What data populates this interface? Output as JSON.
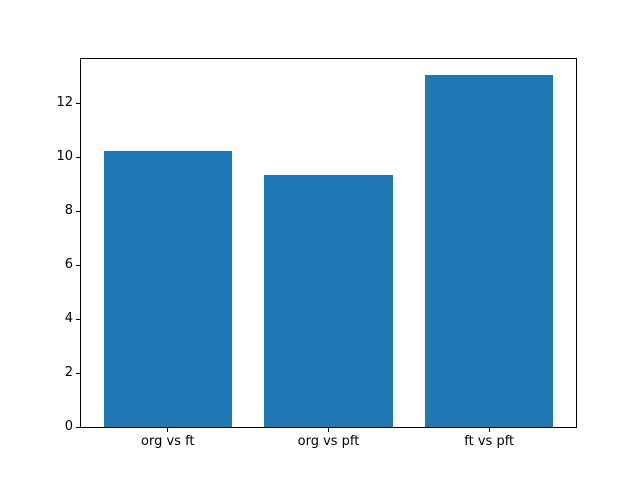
{
  "chart_data": {
    "type": "bar",
    "title": "",
    "xlabel": "",
    "ylabel": "",
    "categories": [
      "org vs ft",
      "org vs pft",
      "ft vs pft"
    ],
    "values": [
      10.25,
      9.33,
      13.05
    ],
    "bar_color": "#1f77b4",
    "bar_width": 0.8,
    "xlim": [
      -0.54,
      2.54
    ],
    "ylim": [
      0,
      13.65
    ],
    "yticks": [
      0,
      2,
      4,
      6,
      8,
      10,
      12
    ],
    "grid": false,
    "legend": "none",
    "background_color": "#ffffff",
    "spine_color": "#000000",
    "tick_label_color": "#000000"
  }
}
